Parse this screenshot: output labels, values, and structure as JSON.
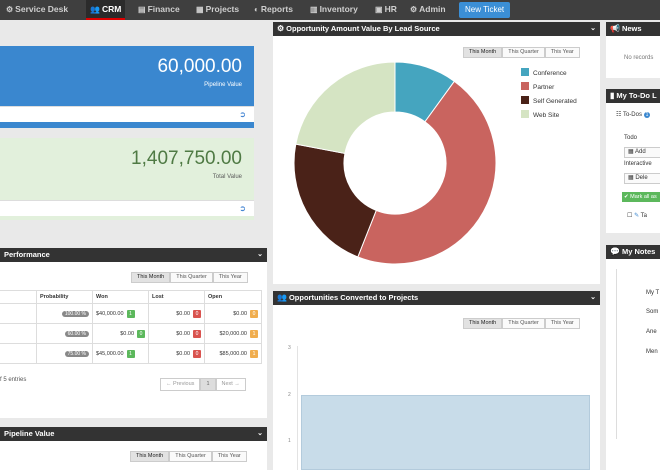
{
  "nav": {
    "items": [
      {
        "label": "Service Desk",
        "icon": "gear-icon"
      },
      {
        "label": "CRM",
        "icon": "users-icon"
      },
      {
        "label": "Finance",
        "icon": "finance-icon"
      },
      {
        "label": "Projects",
        "icon": "folder-icon"
      },
      {
        "label": "Reports",
        "icon": "report-icon"
      },
      {
        "label": "Inventory",
        "icon": "inventory-icon"
      },
      {
        "label": "HR",
        "icon": "hr-icon"
      },
      {
        "label": "Admin",
        "icon": "admin-icon"
      }
    ],
    "new_ticket": "New Ticket"
  },
  "pipeline": {
    "value": "60,000.00",
    "label": "Pipeline Value"
  },
  "total": {
    "value": "1,407,750.00",
    "label": "Total Value"
  },
  "performance": {
    "title": "Performance",
    "filters": [
      "This Month",
      "This Quarter",
      "This Year"
    ],
    "columns": [
      "Probability",
      "Won",
      "Lost",
      "Open"
    ],
    "rows": [
      {
        "prob": "100.00 %",
        "won": "$40,000.00",
        "won_n": "1",
        "lost": "$0.00",
        "lost_n": "0",
        "open": "$0.00",
        "open_n": "0"
      },
      {
        "prob": "60.00 %",
        "won": "$0.00",
        "won_n": "0",
        "lost": "$0.00",
        "lost_n": "0",
        "open": "$20,000.00",
        "open_n": "1"
      },
      {
        "prob": "75.00 %",
        "won": "$45,000.00",
        "won_n": "1",
        "lost": "$0.00",
        "lost_n": "0",
        "open": "$85,000.00",
        "open_n": "1"
      }
    ],
    "entries": "f 5 entries",
    "pager": [
      "← Previous",
      "1",
      "Next →"
    ]
  },
  "pipeline_value": {
    "title": "Pipeline Value",
    "filters": [
      "This Month",
      "This Quarter",
      "This Year"
    ]
  },
  "opportunity": {
    "title": "Opportunity Amount Value By Lead Source",
    "filters": [
      "This Month",
      "This Quarter",
      "This Year"
    ]
  },
  "chart_data": {
    "type": "pie",
    "title": "Opportunity Amount Value By Lead Source",
    "categories": [
      "Conference",
      "Partner",
      "Self Generated",
      "Web Site"
    ],
    "values": [
      10,
      46,
      22,
      22
    ],
    "colors": [
      "#45a5bf",
      "#c9645f",
      "#4a2218",
      "#d5e4c3"
    ],
    "legend": "right"
  },
  "converted": {
    "title": "Opportunities Converted to Projects",
    "filters": [
      "This Month",
      "This Quarter",
      "This Year"
    ],
    "y_ticks": [
      "3",
      "2",
      "1"
    ]
  },
  "news": {
    "title": "News",
    "empty": "No records"
  },
  "todo": {
    "title": "My To-Do L",
    "tab": "To-Dos",
    "tab_count": "1",
    "todo_label": "Todo",
    "interactive": "Interactive",
    "btn1": "Add",
    "btn2": "Dele",
    "mark": "Mark all as",
    "ta": "Ta"
  },
  "notes": {
    "title": "My Notes",
    "items": [
      "My T",
      "Som",
      "Ane",
      "Men"
    ]
  }
}
